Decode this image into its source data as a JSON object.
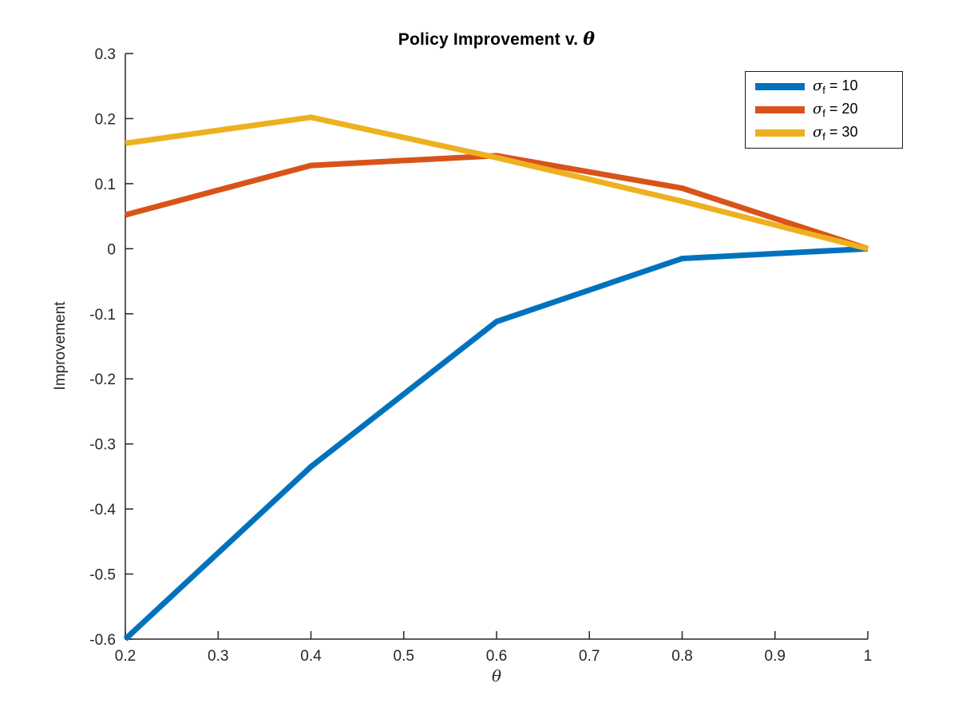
{
  "figure": {
    "title": {
      "text": "Policy Improvement v. ",
      "math_symbol": "θ"
    },
    "ylabel": "Improvement",
    "xlabel_symbol": "θ"
  },
  "chart_data": {
    "type": "line",
    "title": "Policy Improvement v. θ",
    "xlabel": "θ",
    "ylabel": "Improvement",
    "x": [
      0.2,
      0.4,
      0.6,
      0.8,
      1.0
    ],
    "series": [
      {
        "name": "σ_f = 10",
        "color": "#0072BD",
        "values": [
          -0.6,
          -0.335,
          -0.112,
          -0.015,
          0.0
        ],
        "legend": {
          "sym": "σ",
          "sub": "f",
          "eq": " = 10"
        }
      },
      {
        "name": "σ_f = 20",
        "color": "#D95319",
        "values": [
          0.052,
          0.128,
          0.143,
          0.093,
          0.0
        ],
        "legend": {
          "sym": "σ",
          "sub": "f",
          "eq": " = 20"
        }
      },
      {
        "name": "σ_f = 30",
        "color": "#EDB120",
        "values": [
          0.162,
          0.202,
          0.14,
          0.073,
          0.0
        ],
        "legend": {
          "sym": "σ",
          "sub": "f",
          "eq": " = 30"
        }
      }
    ],
    "xlim": [
      0.2,
      1.0
    ],
    "ylim": [
      -0.6,
      0.3
    ],
    "xticks": [
      0.2,
      0.3,
      0.4,
      0.5,
      0.6,
      0.7,
      0.8,
      0.9,
      1
    ],
    "xtick_labels": [
      "0.2",
      "0.3",
      "0.4",
      "0.5",
      "0.6",
      "0.7",
      "0.8",
      "0.9",
      "1"
    ],
    "yticks": [
      -0.6,
      -0.5,
      -0.4,
      -0.3,
      -0.2,
      -0.1,
      0,
      0.1,
      0.2,
      0.3
    ],
    "ytick_labels": [
      "-0.6",
      "-0.5",
      "-0.4",
      "-0.3",
      "-0.2",
      "-0.1",
      "0",
      "0.1",
      "0.2",
      "0.3"
    ],
    "grid": false,
    "legend_position": "top-right",
    "axis_color": "#262626"
  }
}
